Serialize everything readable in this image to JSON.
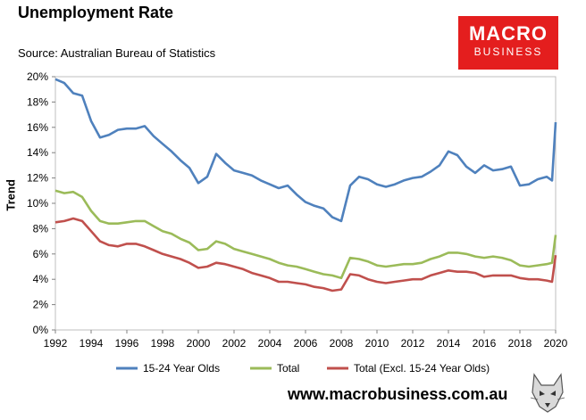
{
  "header": {
    "title": "Unemployment Rate",
    "source": "Source: Australian Bureau of Statistics",
    "logo_line1": "MACRO",
    "logo_line2": "BUSINESS"
  },
  "footer": {
    "website": "www.macrobusiness.com.au"
  },
  "colors": {
    "youth": "#4f81bd",
    "total": "#9bbb59",
    "total_excl": "#c0504d",
    "logo_bg": "#e41e1e"
  },
  "chart_data": {
    "type": "line",
    "title": "Unemployment Rate",
    "ylabel": "Trend",
    "xlabel": "",
    "xlim": [
      1992,
      2020
    ],
    "ylim": [
      0,
      20
    ],
    "x_ticks": [
      "1992",
      "1994",
      "1996",
      "1998",
      "2000",
      "2002",
      "2004",
      "2006",
      "2008",
      "2010",
      "2012",
      "2014",
      "2016",
      "2018",
      "2020"
    ],
    "y_ticks": [
      "0%",
      "2%",
      "4%",
      "6%",
      "8%",
      "10%",
      "12%",
      "14%",
      "16%",
      "18%",
      "20%"
    ],
    "x": [
      1992.0,
      1992.5,
      1993.0,
      1993.5,
      1994.0,
      1994.5,
      1995.0,
      1995.5,
      1996.0,
      1996.5,
      1997.0,
      1997.5,
      1998.0,
      1998.5,
      1999.0,
      1999.5,
      2000.0,
      2000.5,
      2001.0,
      2001.5,
      2002.0,
      2002.5,
      2003.0,
      2003.5,
      2004.0,
      2004.5,
      2005.0,
      2005.5,
      2006.0,
      2006.5,
      2007.0,
      2007.5,
      2008.0,
      2008.5,
      2009.0,
      2009.5,
      2010.0,
      2010.5,
      2011.0,
      2011.5,
      2012.0,
      2012.5,
      2013.0,
      2013.5,
      2014.0,
      2014.5,
      2015.0,
      2015.5,
      2016.0,
      2016.5,
      2017.0,
      2017.5,
      2018.0,
      2018.5,
      2019.0,
      2019.5,
      2019.8,
      2020.0
    ],
    "series": [
      {
        "name": "15-24 Year Olds",
        "color": "#4f81bd",
        "values": [
          19.8,
          19.5,
          18.7,
          18.5,
          16.5,
          15.2,
          15.4,
          15.8,
          15.9,
          15.9,
          16.1,
          15.3,
          14.7,
          14.1,
          13.4,
          12.8,
          11.6,
          12.1,
          13.9,
          13.2,
          12.6,
          12.4,
          12.2,
          11.8,
          11.5,
          11.2,
          11.4,
          10.7,
          10.1,
          9.8,
          9.6,
          8.9,
          8.6,
          11.4,
          12.1,
          11.9,
          11.5,
          11.3,
          11.5,
          11.8,
          12.0,
          12.1,
          12.5,
          13.0,
          14.1,
          13.8,
          12.9,
          12.4,
          13.0,
          12.6,
          12.7,
          12.9,
          11.4,
          11.5,
          11.9,
          12.1,
          11.8,
          16.4
        ]
      },
      {
        "name": "Total",
        "color": "#9bbb59",
        "values": [
          11.0,
          10.8,
          10.9,
          10.5,
          9.4,
          8.6,
          8.4,
          8.4,
          8.5,
          8.6,
          8.6,
          8.2,
          7.8,
          7.6,
          7.2,
          6.9,
          6.3,
          6.4,
          7.0,
          6.8,
          6.4,
          6.2,
          6.0,
          5.8,
          5.6,
          5.3,
          5.1,
          5.0,
          4.8,
          4.6,
          4.4,
          4.3,
          4.1,
          5.7,
          5.6,
          5.4,
          5.1,
          5.0,
          5.1,
          5.2,
          5.2,
          5.3,
          5.6,
          5.8,
          6.1,
          6.1,
          6.0,
          5.8,
          5.7,
          5.8,
          5.7,
          5.5,
          5.1,
          5.0,
          5.1,
          5.2,
          5.3,
          7.5
        ]
      },
      {
        "name": "Total (Excl. 15-24 Year Olds)",
        "color": "#c0504d",
        "values": [
          8.5,
          8.6,
          8.8,
          8.6,
          7.8,
          7.0,
          6.7,
          6.6,
          6.8,
          6.8,
          6.6,
          6.3,
          6.0,
          5.8,
          5.6,
          5.3,
          4.9,
          5.0,
          5.3,
          5.2,
          5.0,
          4.8,
          4.5,
          4.3,
          4.1,
          3.8,
          3.8,
          3.7,
          3.6,
          3.4,
          3.3,
          3.1,
          3.2,
          4.4,
          4.3,
          4.0,
          3.8,
          3.7,
          3.8,
          3.9,
          4.0,
          4.0,
          4.3,
          4.5,
          4.7,
          4.6,
          4.6,
          4.5,
          4.2,
          4.3,
          4.3,
          4.3,
          4.1,
          4.0,
          4.0,
          3.9,
          3.8,
          5.9
        ]
      }
    ],
    "legend_position": "bottom"
  }
}
